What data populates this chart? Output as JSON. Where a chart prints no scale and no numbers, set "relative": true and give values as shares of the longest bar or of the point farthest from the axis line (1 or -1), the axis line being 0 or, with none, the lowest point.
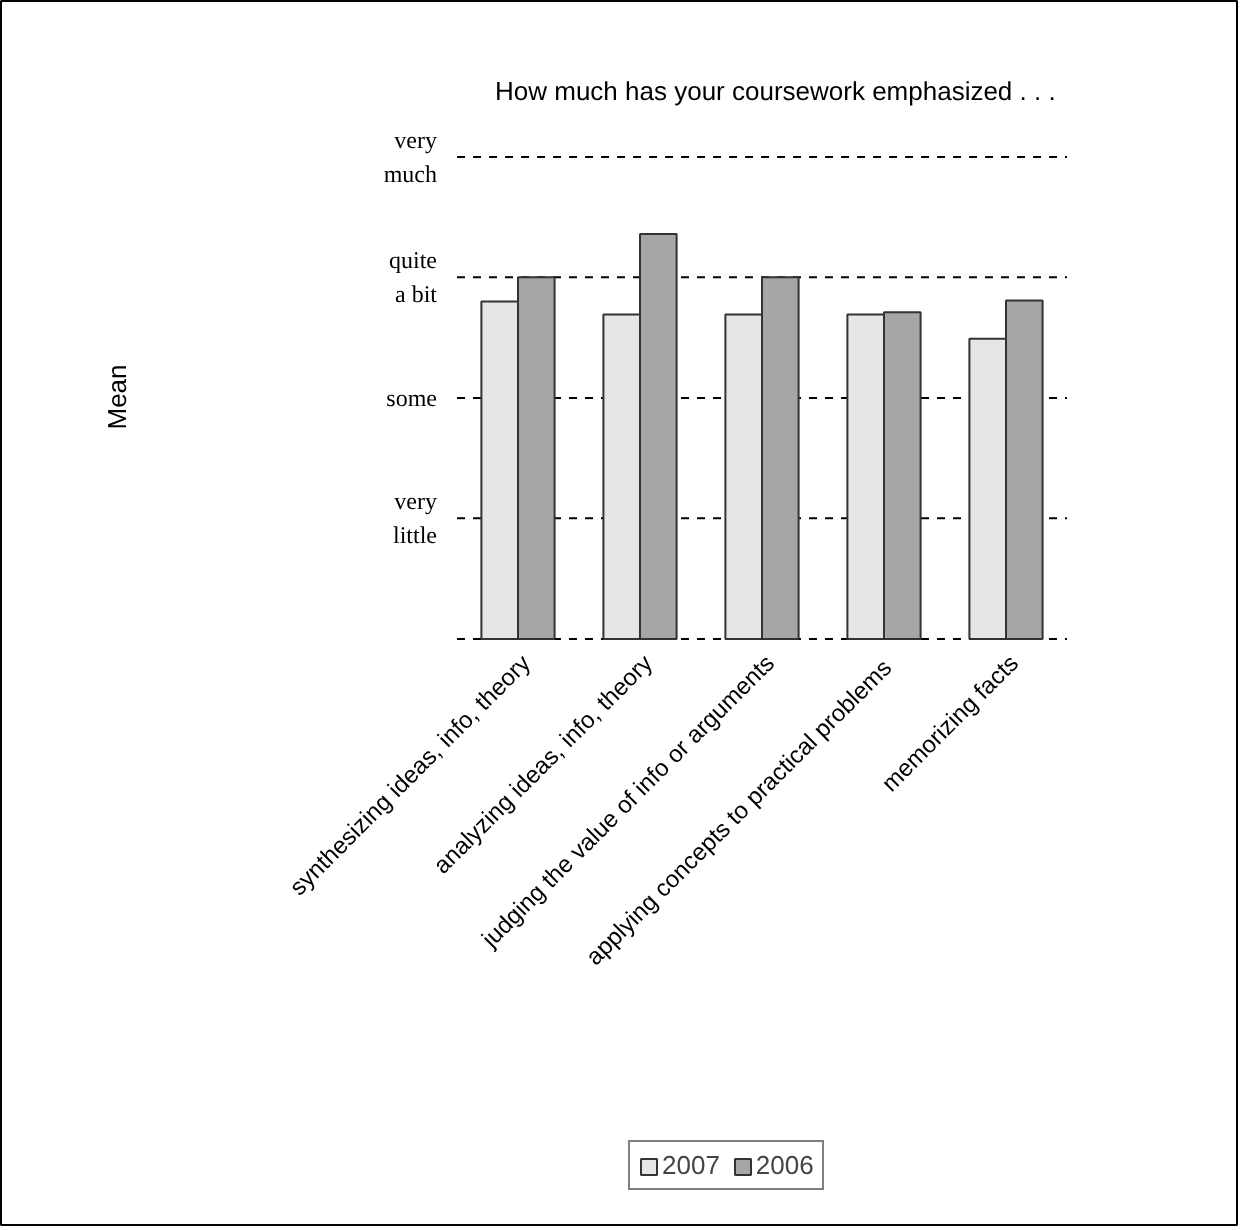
{
  "chart_data": {
    "type": "bar",
    "title": "How much has your coursework emphasized . . .",
    "annotations": [
      "Mean"
    ],
    "relative": true,
    "categories": [
      "synthesizing ideas, info, theory",
      "analyzing ideas, info, theory",
      "judging the value of info or arguments",
      "applying concepts to  practical problems",
      "memorizing facts"
    ],
    "series": [
      {
        "name": "2007",
        "color": "#e6e6e6",
        "values": [
          0.833,
          0.801,
          0.801,
          0.801,
          0.741
        ]
      },
      {
        "name": "2006",
        "color": "#a6a6a6",
        "values": [
          0.893,
          1,
          0.893,
          0.807,
          0.836
        ]
      }
    ],
    "ref_lines": [
      {
        "axis": "y",
        "value": 0,
        "label": null,
        "line_style": "dashed"
      },
      {
        "axis": "y",
        "value": 0.298,
        "label": "very little",
        "line_style": "dashed"
      },
      {
        "axis": "y",
        "value": 0.595,
        "label": "some",
        "line_style": "dashed"
      },
      {
        "axis": "y",
        "value": 0.893,
        "label": "quite a bit",
        "line_style": "dashed"
      },
      {
        "axis": "y",
        "value": 1.19,
        "label": "very much",
        "line_style": "dashed"
      }
    ],
    "legend": "bottom"
  }
}
